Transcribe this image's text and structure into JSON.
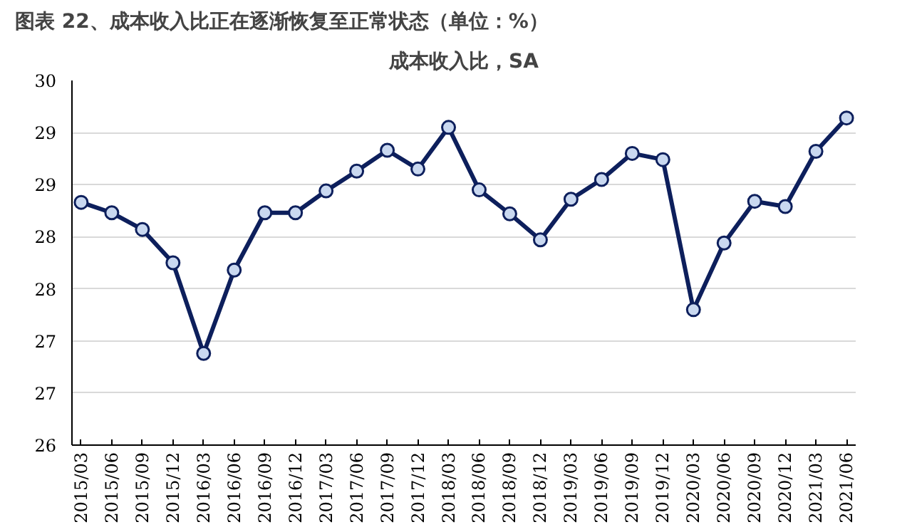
{
  "chart_data": {
    "type": "line",
    "title": "图表 22、成本收入比正在逐渐恢复至正常状态（单位：%）",
    "subtitle": "成本收入比，SA",
    "categories": [
      "2015/03",
      "2015/06",
      "2015/09",
      "2015/12",
      "2016/03",
      "2016/06",
      "2016/09",
      "2016/12",
      "2017/03",
      "2017/06",
      "2017/09",
      "2017/12",
      "2018/03",
      "2018/06",
      "2018/09",
      "2018/12",
      "2019/03",
      "2019/06",
      "2019/09",
      "2019/12",
      "2020/03",
      "2020/06",
      "2020/09",
      "2020/12",
      "2021/03",
      "2021/06"
    ],
    "series": [
      {
        "color": "#0d1f5c",
        "values": [
          28.33,
          28.23,
          28.07,
          27.75,
          26.88,
          27.68,
          28.23,
          28.23,
          28.44,
          28.63,
          28.83,
          28.65,
          29.05,
          28.45,
          28.22,
          27.97,
          28.36,
          28.55,
          28.8,
          28.74,
          27.3,
          27.94,
          28.34,
          28.29,
          28.82,
          29.14
        ]
      }
    ],
    "ylim": [
      26,
      29.5
    ],
    "yticks": [
      26,
      {
        "value": 26.5,
        "label": "27"
      },
      27,
      {
        "value": 27.5,
        "label": "28"
      },
      28,
      {
        "value": 28.5,
        "label": "29"
      },
      29,
      {
        "value": 29.5,
        "label": "30"
      }
    ],
    "grid": "y",
    "marker": "circle",
    "line_style": "solid"
  }
}
